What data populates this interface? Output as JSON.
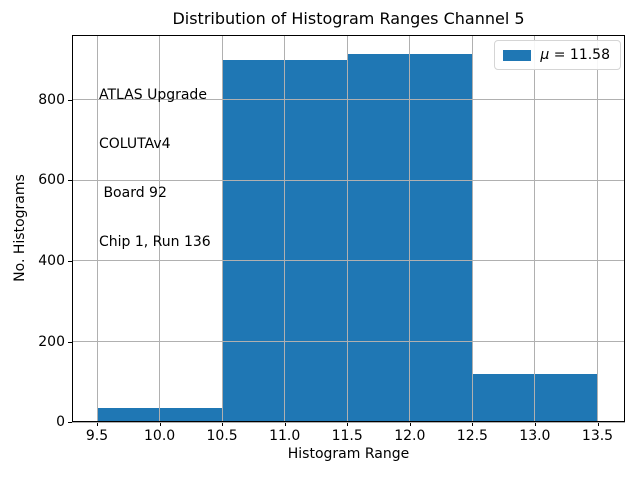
{
  "figure": {
    "background": "#ffffff",
    "text_color": "#000000"
  },
  "chart_data": {
    "type": "bar",
    "title": "Distribution of Histogram Ranges Channel 5",
    "xlabel": "Histogram Range",
    "ylabel": "No. Histograms",
    "bin_edges": [
      9.5,
      10.5,
      11.5,
      12.5,
      13.5
    ],
    "categories": [
      "9.5-10.5",
      "10.5-11.5",
      "11.5-12.5",
      "12.5-13.5"
    ],
    "values": [
      35,
      900,
      915,
      120
    ],
    "bar_color": "#1f77b4",
    "xlim": [
      9.3,
      13.72
    ],
    "ylim": [
      0,
      961
    ],
    "xticks": [
      9.5,
      10.0,
      10.5,
      11.0,
      11.5,
      12.0,
      12.5,
      13.0,
      13.5
    ],
    "xtick_labels": [
      "9.5",
      "10.0",
      "10.5",
      "11.0",
      "11.5",
      "12.0",
      "12.5",
      "13.0",
      "13.5"
    ],
    "yticks": [
      0,
      200,
      400,
      600,
      800
    ],
    "ytick_labels": [
      "0",
      "200",
      "400",
      "600",
      "800"
    ],
    "grid": true,
    "grid_color": "#b0b0b0",
    "grid_above_bars": true,
    "legend": {
      "position": "upper right",
      "entries": [
        {
          "label": "μ = 11.58",
          "symbol": "μ",
          "rest": " = 11.58",
          "color": "#1f77b4"
        }
      ]
    },
    "annotation": {
      "lines": [
        "ATLAS Upgrade",
        "COLUTAv4",
        " Board 92",
        "Chip 1, Run 136"
      ]
    }
  }
}
